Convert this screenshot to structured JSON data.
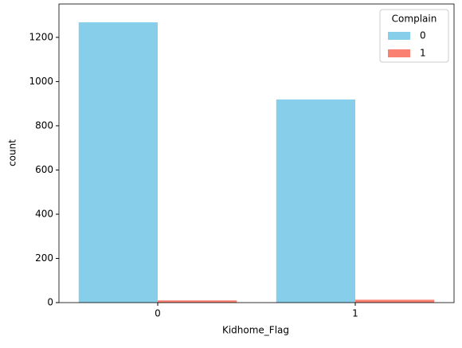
{
  "chart_data": {
    "type": "bar",
    "x_label": "Kidhome_Flag",
    "y_label": "count",
    "categories": [
      "0",
      "1"
    ],
    "series": [
      {
        "name": "0",
        "color": "#87ceeb",
        "values": [
          1268,
          919
        ]
      },
      {
        "name": "1",
        "color": "#fa8072",
        "values": [
          10,
          13
        ]
      }
    ],
    "legend_title": "Complain",
    "legend": "upper right",
    "ylim": [
      0,
      1351
    ],
    "yticks": [
      0,
      200,
      400,
      600,
      800,
      1000,
      1200
    ]
  }
}
